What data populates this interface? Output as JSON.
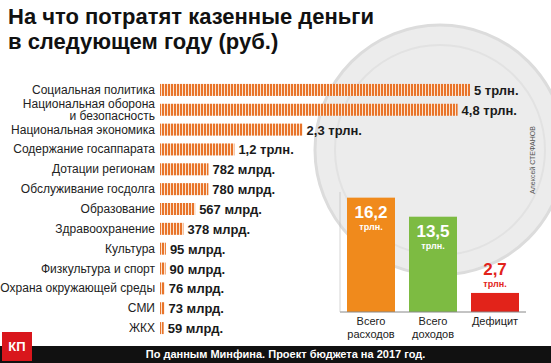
{
  "title": [
    "На что потратят казенные деньги",
    "в следующем году (руб.)"
  ],
  "source": "По данным Минфина. Проект бюджета на 2017 год.",
  "credit": "Алексей СТЕФАНОВ",
  "logo": "КП",
  "chart_data": [
    {
      "type": "bar",
      "orientation": "horizontal",
      "categories": [
        "Социальная политика",
        "Национальная оборона\nи безопасность",
        "Национальная экономика",
        "Содержание госаппарата",
        "Дотации регионам",
        "Обслуживание госдолга",
        "Образование",
        "Здравоохранение",
        "Культура",
        "Физкультура и спорт",
        "Охрана окружающей среды",
        "СМИ",
        "ЖКХ"
      ],
      "values": [
        5000,
        4800,
        2300,
        1200,
        782,
        780,
        567,
        378,
        95,
        90,
        76,
        73,
        59
      ],
      "value_labels": [
        "5 трлн.",
        "4,8 трлн.",
        "2,3 трлн.",
        "1,2 трлн.",
        "782 млрд.",
        "780 млрд.",
        "567 млрд.",
        "378 млрд.",
        "95 млрд.",
        "90 млрд.",
        "76 млрд.",
        "73 млрд.",
        "59 млрд."
      ],
      "color": "#e8742a",
      "xlim": [
        0,
        5000
      ],
      "tick_labels": "y",
      "data_labels": true
    },
    {
      "type": "bar",
      "categories": [
        "Всего\nрасходов",
        "Всего\nдоходов",
        "Дефицит"
      ],
      "values": [
        16.2,
        13.5,
        2.7
      ],
      "value_labels": [
        "16,2 трлн.",
        "13,5 трлн.",
        "2,7 трлн."
      ],
      "colors": [
        "#f08a1c",
        "#7dbb42",
        "#e2231a"
      ],
      "ylim": [
        0,
        17
      ],
      "tick_labels": "x",
      "data_labels": true
    }
  ]
}
